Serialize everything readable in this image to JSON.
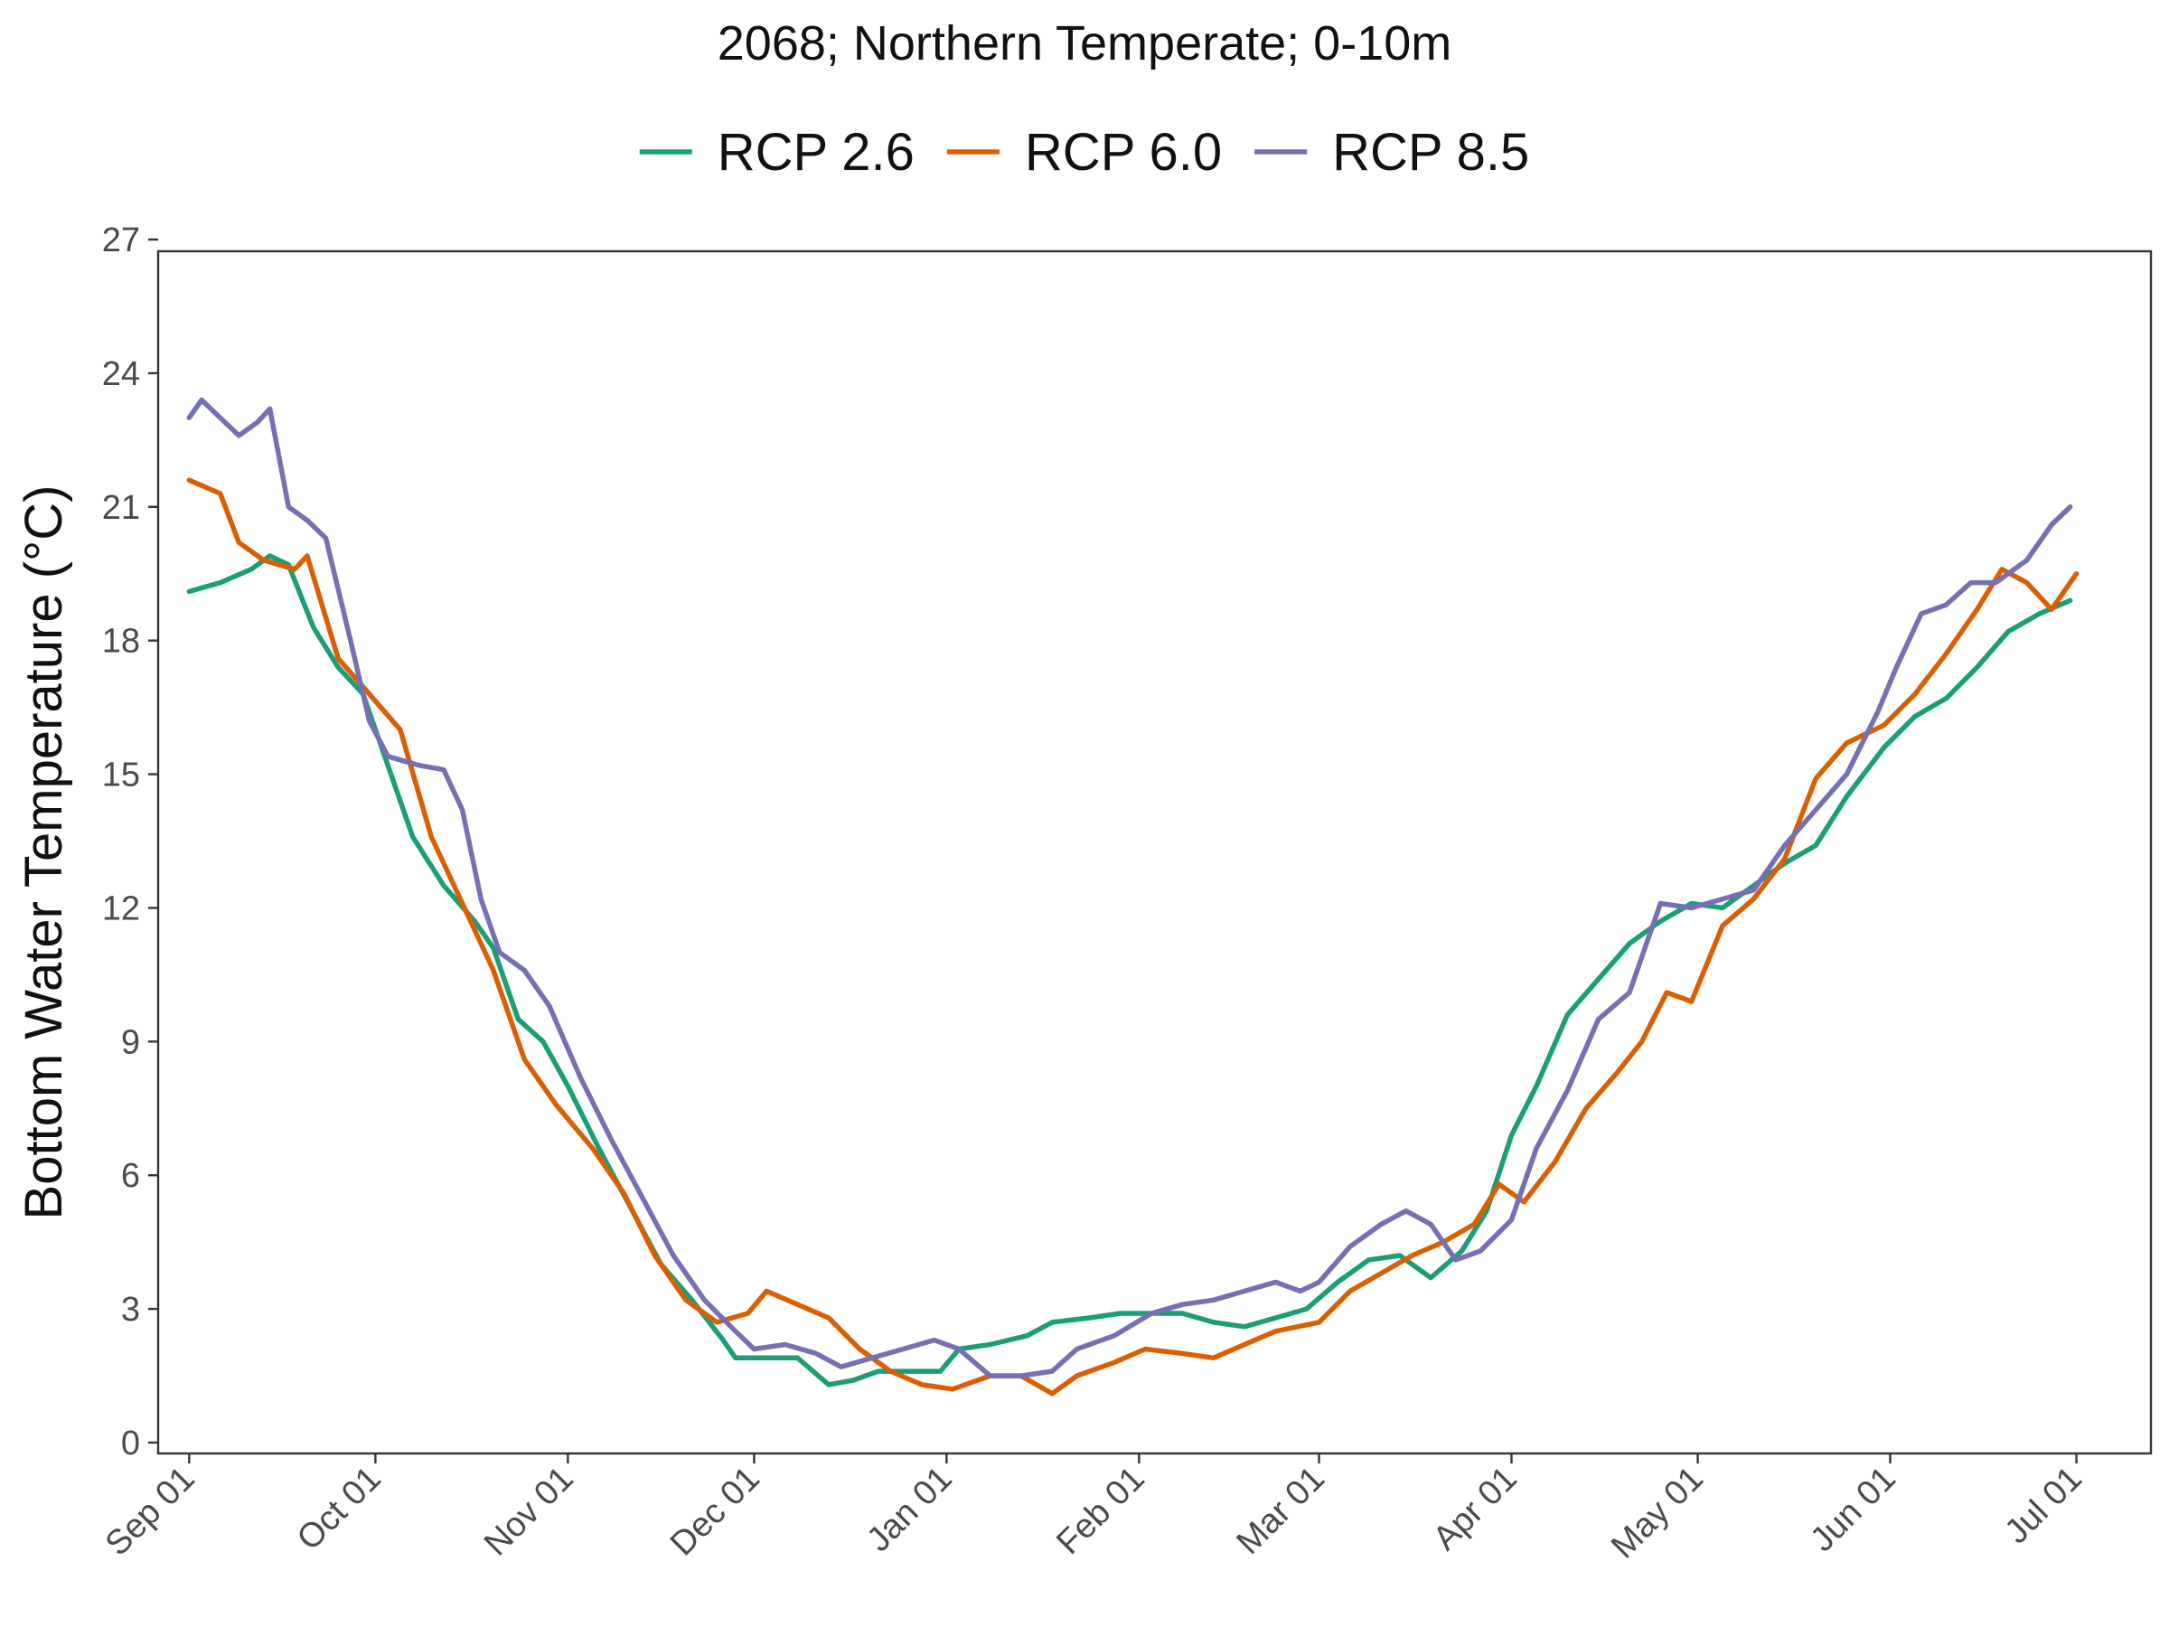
{
  "chart_data": {
    "type": "line",
    "title": "2068;  Northern Temperate;  0-10m",
    "xlabel": "",
    "ylabel": "Bottom Water Temperature (°C)",
    "ylim": [
      0,
      27
    ],
    "y_ticks": [
      0,
      3,
      6,
      9,
      12,
      15,
      18,
      21,
      24,
      27
    ],
    "xlim": [
      "2067-08-27",
      "2068-07-13"
    ],
    "x_ticks": [
      "2067-09-01",
      "2067-10-01",
      "2067-11-01",
      "2067-12-01",
      "2068-01-01",
      "2068-02-01",
      "2068-03-01",
      "2068-04-01",
      "2068-05-01",
      "2068-06-01",
      "2068-07-01"
    ],
    "x_tick_labels": [
      "Sep 01",
      "Oct 01",
      "Nov 01",
      "Dec 01",
      "Jan 01",
      "Feb 01",
      "Mar 01",
      "Apr 01",
      "May 01",
      "Jun 01",
      "Jul 01"
    ],
    "grid": false,
    "legend_position": "top",
    "series": [
      {
        "name": "RCP 2.6",
        "color": "#1b9e77",
        "x": [
          "2067-09-01",
          "2067-09-06",
          "2067-09-11",
          "2067-09-14",
          "2067-09-17",
          "2067-09-21",
          "2067-09-25",
          "2067-09-29",
          "2067-10-02",
          "2067-10-07",
          "2067-10-12",
          "2067-10-17",
          "2067-10-20",
          "2067-10-24",
          "2067-10-28",
          "2067-11-01",
          "2067-11-06",
          "2067-11-11",
          "2067-11-16",
          "2067-11-21",
          "2067-11-26",
          "2067-11-28",
          "2067-12-03",
          "2067-12-08",
          "2067-12-13",
          "2067-12-17",
          "2067-12-21",
          "2067-12-26",
          "2067-12-31",
          "2068-01-03",
          "2068-01-08",
          "2068-01-14",
          "2068-01-18",
          "2068-01-24",
          "2068-01-29",
          "2068-02-03",
          "2068-02-08",
          "2068-02-13",
          "2068-02-18",
          "2068-02-23",
          "2068-02-28",
          "2068-03-04",
          "2068-03-09",
          "2068-03-14",
          "2068-03-19",
          "2068-03-24",
          "2068-03-28",
          "2068-04-01",
          "2068-04-05",
          "2068-04-10",
          "2068-04-15",
          "2068-04-20",
          "2068-04-25",
          "2068-04-30",
          "2068-05-05",
          "2068-05-10",
          "2068-05-15",
          "2068-05-20",
          "2068-05-25",
          "2068-05-31",
          "2068-06-05",
          "2068-06-10",
          "2068-06-15",
          "2068-06-20",
          "2068-06-25",
          "2068-06-30"
        ],
        "values": [
          19.1,
          19.3,
          19.6,
          19.9,
          19.7,
          18.3,
          17.4,
          16.8,
          15.6,
          13.6,
          12.5,
          11.7,
          11.1,
          9.5,
          9.0,
          8.0,
          6.6,
          5.3,
          4.0,
          3.2,
          2.3,
          1.9,
          1.9,
          1.9,
          1.3,
          1.4,
          1.6,
          1.6,
          1.6,
          2.1,
          2.2,
          2.4,
          2.7,
          2.8,
          2.9,
          2.9,
          2.9,
          2.7,
          2.6,
          2.8,
          3.0,
          3.6,
          4.1,
          4.2,
          3.7,
          4.3,
          5.2,
          6.9,
          8.0,
          9.6,
          10.4,
          11.2,
          11.7,
          12.1,
          12.0,
          12.5,
          13.0,
          13.4,
          14.5,
          15.6,
          16.3,
          16.7,
          17.4,
          18.2,
          18.6,
          18.9
        ]
      },
      {
        "name": "RCP 6.0",
        "color": "#d95f02",
        "x": [
          "2067-09-01",
          "2067-09-06",
          "2067-09-09",
          "2067-09-13",
          "2067-09-18",
          "2067-09-20",
          "2067-09-25",
          "2067-09-30",
          "2067-10-05",
          "2067-10-10",
          "2067-10-15",
          "2067-10-20",
          "2067-10-25",
          "2067-10-30",
          "2067-11-05",
          "2067-11-10",
          "2067-11-15",
          "2067-11-20",
          "2067-11-25",
          "2067-11-30",
          "2067-12-03",
          "2067-12-08",
          "2067-12-13",
          "2067-12-18",
          "2067-12-23",
          "2067-12-28",
          "2068-01-02",
          "2068-01-08",
          "2068-01-13",
          "2068-01-18",
          "2068-01-22",
          "2068-01-28",
          "2068-02-02",
          "2068-02-08",
          "2068-02-13",
          "2068-02-18",
          "2068-02-23",
          "2068-03-01",
          "2068-03-06",
          "2068-03-11",
          "2068-03-16",
          "2068-03-21",
          "2068-03-26",
          "2068-03-30",
          "2068-04-03",
          "2068-04-08",
          "2068-04-13",
          "2068-04-18",
          "2068-04-22",
          "2068-04-26",
          "2068-04-30",
          "2068-05-05",
          "2068-05-10",
          "2068-05-15",
          "2068-05-20",
          "2068-05-25",
          "2068-05-31",
          "2068-06-05",
          "2068-06-10",
          "2068-06-15",
          "2068-06-19",
          "2068-06-23",
          "2068-06-27",
          "2068-07-01"
        ],
        "values": [
          21.6,
          21.3,
          20.2,
          19.8,
          19.6,
          19.9,
          17.6,
          16.8,
          16.0,
          13.6,
          12.1,
          10.6,
          8.6,
          7.6,
          6.6,
          5.6,
          4.2,
          3.2,
          2.7,
          2.9,
          3.4,
          3.1,
          2.8,
          2.1,
          1.6,
          1.3,
          1.2,
          1.5,
          1.5,
          1.1,
          1.5,
          1.8,
          2.1,
          2.0,
          1.9,
          2.2,
          2.5,
          2.7,
          3.4,
          3.8,
          4.2,
          4.5,
          4.9,
          5.8,
          5.4,
          6.3,
          7.5,
          8.3,
          9.0,
          10.1,
          9.9,
          11.6,
          12.2,
          13.1,
          14.9,
          15.7,
          16.1,
          16.8,
          17.7,
          18.7,
          19.6,
          19.3,
          18.7,
          19.5
        ]
      },
      {
        "name": "RCP 8.5",
        "color": "#7570b3",
        "x": [
          "2067-09-01",
          "2067-09-03",
          "2067-09-06",
          "2067-09-09",
          "2067-09-12",
          "2067-09-14",
          "2067-09-17",
          "2067-09-20",
          "2067-09-23",
          "2067-09-27",
          "2067-09-30",
          "2067-10-03",
          "2067-10-08",
          "2067-10-12",
          "2067-10-15",
          "2067-10-18",
          "2067-10-21",
          "2067-10-25",
          "2067-10-29",
          "2067-11-03",
          "2067-11-08",
          "2067-11-13",
          "2067-11-18",
          "2067-11-23",
          "2067-11-28",
          "2067-12-01",
          "2067-12-06",
          "2067-12-11",
          "2067-12-15",
          "2067-12-20",
          "2067-12-25",
          "2067-12-30",
          "2068-01-03",
          "2068-01-08",
          "2068-01-13",
          "2068-01-18",
          "2068-01-22",
          "2068-01-28",
          "2068-02-03",
          "2068-02-08",
          "2068-02-13",
          "2068-02-18",
          "2068-02-23",
          "2068-02-27",
          "2068-03-01",
          "2068-03-06",
          "2068-03-11",
          "2068-03-15",
          "2068-03-19",
          "2068-03-23",
          "2068-03-27",
          "2068-04-01",
          "2068-04-05",
          "2068-04-10",
          "2068-04-15",
          "2068-04-20",
          "2068-04-25",
          "2068-04-30",
          "2068-05-05",
          "2068-05-10",
          "2068-05-15",
          "2068-05-20",
          "2068-05-25",
          "2068-05-30",
          "2068-06-02",
          "2068-06-06",
          "2068-06-10",
          "2068-06-14",
          "2068-06-18",
          "2068-06-23",
          "2068-06-27",
          "2068-06-30"
        ],
        "values": [
          23.0,
          23.4,
          23.0,
          22.6,
          22.9,
          23.2,
          21.0,
          20.7,
          20.3,
          18.0,
          16.2,
          15.4,
          15.2,
          15.1,
          14.2,
          12.2,
          11.0,
          10.6,
          9.8,
          8.2,
          6.8,
          5.5,
          4.2,
          3.2,
          2.5,
          2.1,
          2.2,
          2.0,
          1.7,
          1.9,
          2.1,
          2.3,
          2.1,
          1.5,
          1.5,
          1.6,
          2.1,
          2.4,
          2.9,
          3.1,
          3.2,
          3.4,
          3.6,
          3.4,
          3.6,
          4.4,
          4.9,
          5.2,
          4.9,
          4.1,
          4.3,
          5.0,
          6.6,
          7.9,
          9.5,
          10.1,
          12.1,
          12.0,
          12.2,
          12.4,
          13.4,
          14.2,
          15.0,
          16.4,
          17.4,
          18.6,
          18.8,
          19.3,
          19.3,
          19.8,
          20.6,
          21.0
        ]
      }
    ]
  }
}
